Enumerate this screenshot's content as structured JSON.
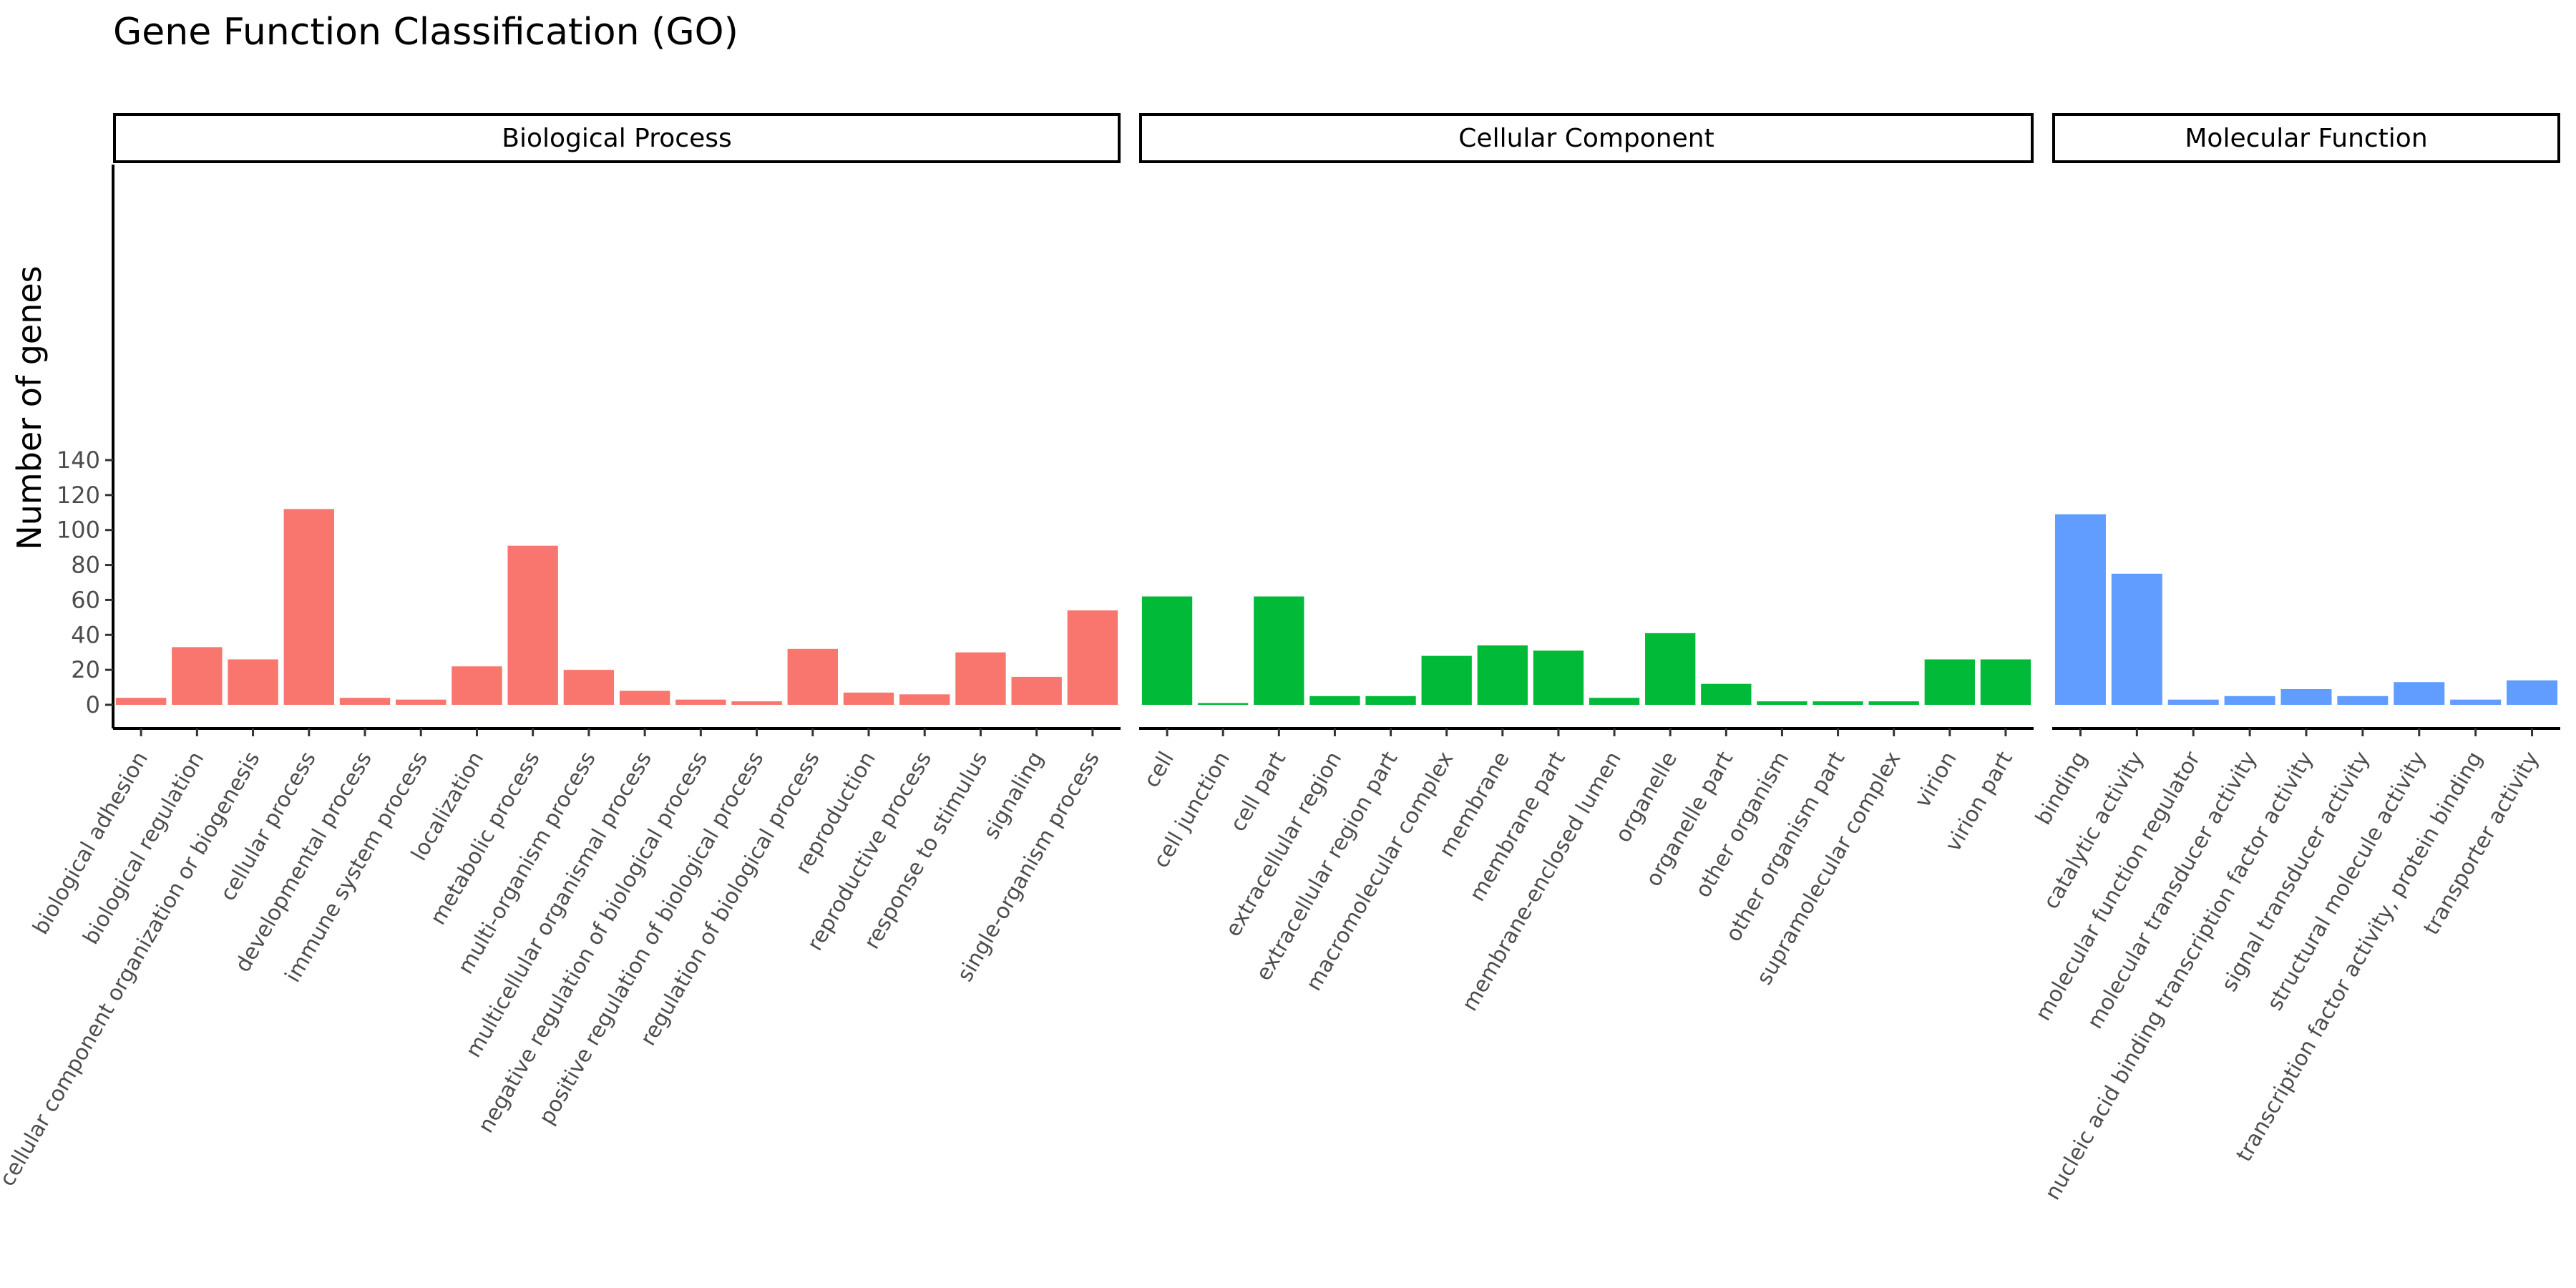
{
  "chart_data": {
    "type": "bar",
    "title": "Gene Function Classification (GO)",
    "xlabel": "",
    "ylabel": "Number of genes",
    "ylim": [
      0,
      155
    ],
    "yticks": [
      0,
      20,
      40,
      60,
      80,
      100,
      120,
      140
    ],
    "grid": false,
    "legend": "none",
    "panels": [
      {
        "name": "Biological Process",
        "color": "#F8766D",
        "categories": [
          "biological adhesion",
          "biological regulation",
          "cellular component organization or biogenesis",
          "cellular process",
          "developmental process",
          "immune system process",
          "localization",
          "metabolic process",
          "multi-organism process",
          "multicellular organismal process",
          "negative regulation of biological process",
          "positive regulation of biological process",
          "regulation of biological process",
          "reproduction",
          "reproductive process",
          "response to stimulus",
          "signaling",
          "single-organism process"
        ],
        "values": [
          4,
          33,
          26,
          112,
          4,
          3,
          22,
          91,
          20,
          8,
          3,
          2,
          32,
          7,
          6,
          30,
          16,
          54
        ]
      },
      {
        "name": "Cellular Component",
        "color": "#00BA38",
        "categories": [
          "cell",
          "cell junction",
          "cell part",
          "extracellular region",
          "extracellular region part",
          "macromolecular complex",
          "membrane",
          "membrane part",
          "membrane-enclosed lumen",
          "organelle",
          "organelle part",
          "other organism",
          "other organism part",
          "supramolecular complex",
          "virion",
          "virion part"
        ],
        "values": [
          62,
          1,
          62,
          5,
          5,
          28,
          34,
          31,
          4,
          41,
          12,
          2,
          2,
          2,
          26,
          26
        ]
      },
      {
        "name": "Molecular Function",
        "color": "#619CFF",
        "categories": [
          "binding",
          "catalytic activity",
          "molecular function regulator",
          "molecular transducer activity",
          "nucleic acid binding transcription factor activity",
          "signal transducer activity",
          "structural molecule activity",
          "transcription factor activity, protein binding",
          "transporter activity"
        ],
        "values": [
          109,
          75,
          3,
          5,
          9,
          5,
          13,
          3,
          14
        ]
      }
    ]
  }
}
